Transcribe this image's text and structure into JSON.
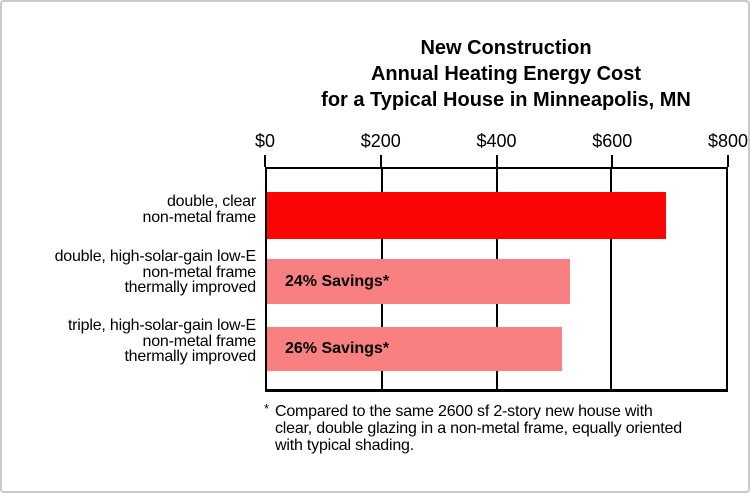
{
  "frame": {
    "background": "#ffffff",
    "border_color": "#c9c9c9"
  },
  "chart_data": {
    "type": "bar",
    "orientation": "horizontal",
    "title_lines": [
      "New Construction",
      "Annual Heating Energy Cost",
      "for a Typical House in Minneapolis, MN"
    ],
    "x_axis": {
      "position": "top",
      "min": 0,
      "max": 800,
      "tick_labels": [
        "$0",
        "$200",
        "$400",
        "$600",
        "$800"
      ],
      "tick_values": [
        0,
        200,
        400,
        600,
        800
      ],
      "grid": true
    },
    "bars": [
      {
        "label_lines": [
          "double, clear",
          "non-metal frame"
        ],
        "value": 695,
        "color": "#fb0505",
        "annotation": null
      },
      {
        "label_lines": [
          "double, high-solar-gain low-E",
          "non-metal frame",
          "thermally improved"
        ],
        "value": 528,
        "color": "#f98080",
        "annotation": "24% Savings*"
      },
      {
        "label_lines": [
          "triple, high-solar-gain low-E",
          "non-metal frame",
          "thermally improved"
        ],
        "value": 514,
        "color": "#f98080",
        "annotation": "26% Savings*"
      }
    ],
    "colors": {
      "baseline_bar": "#fb0505",
      "improved_bar": "#f98080",
      "axis": "#000000"
    },
    "footnote": {
      "marker": "*",
      "lines": [
        "Compared to the same 2600 sf 2-story new house with",
        "clear, double glazing in a non-metal frame, equally oriented",
        "with typical shading."
      ]
    }
  }
}
